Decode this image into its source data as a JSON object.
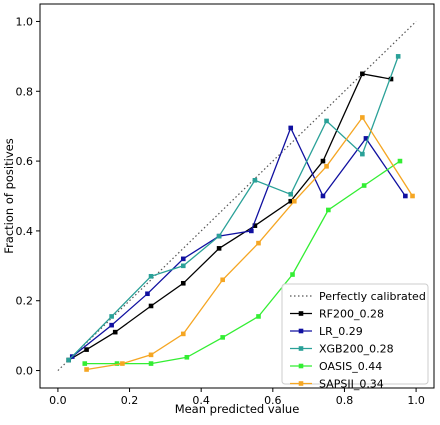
{
  "chart_data": {
    "type": "line",
    "title": "",
    "xlabel": "Mean predicted value",
    "ylabel": "Fraction of positives",
    "xlim": [
      -0.05,
      1.05
    ],
    "ylim": [
      -0.05,
      1.05
    ],
    "x_ticks": [
      "0.0",
      "0.2",
      "0.4",
      "0.6",
      "0.8",
      "1.0"
    ],
    "y_ticks": [
      "0.0",
      "0.2",
      "0.4",
      "0.6",
      "0.8",
      "1.0"
    ],
    "grid": false,
    "legend_position": "lower-right",
    "reference_line": {
      "name": "Perfectly calibrated",
      "x": [
        0,
        1
      ],
      "y": [
        0,
        1
      ],
      "style": "dotted",
      "color": "#555555"
    },
    "series": [
      {
        "name": "RF200_0.28",
        "color": "#000000",
        "x": [
          0.03,
          0.08,
          0.16,
          0.26,
          0.35,
          0.45,
          0.55,
          0.65,
          0.74,
          0.85,
          0.93
        ],
        "y": [
          0.03,
          0.06,
          0.11,
          0.185,
          0.25,
          0.35,
          0.415,
          0.485,
          0.6,
          0.85,
          0.835
        ]
      },
      {
        "name": "LR_0.29",
        "color": "#1010a0",
        "x": [
          0.04,
          0.15,
          0.25,
          0.35,
          0.45,
          0.54,
          0.65,
          0.74,
          0.86,
          0.97
        ],
        "y": [
          0.04,
          0.13,
          0.22,
          0.32,
          0.385,
          0.4,
          0.695,
          0.5,
          0.665,
          0.5
        ]
      },
      {
        "name": "XGB200_0.28",
        "color": "#2aa198",
        "x": [
          0.03,
          0.15,
          0.26,
          0.35,
          0.45,
          0.55,
          0.65,
          0.75,
          0.85,
          0.95
        ],
        "y": [
          0.03,
          0.155,
          0.27,
          0.3,
          0.385,
          0.545,
          0.505,
          0.715,
          0.62,
          0.9
        ]
      },
      {
        "name": "OASIS_0.44",
        "color": "#33ee33",
        "x": [
          0.075,
          0.165,
          0.26,
          0.36,
          0.46,
          0.56,
          0.655,
          0.755,
          0.855,
          0.955
        ],
        "y": [
          0.02,
          0.02,
          0.02,
          0.038,
          0.095,
          0.155,
          0.275,
          0.46,
          0.53,
          0.6
        ]
      },
      {
        "name": "SAPSII_0.34",
        "color": "#f5a623",
        "x": [
          0.08,
          0.18,
          0.26,
          0.35,
          0.46,
          0.56,
          0.66,
          0.75,
          0.85,
          0.99
        ],
        "y": [
          0.003,
          0.02,
          0.045,
          0.105,
          0.26,
          0.365,
          0.485,
          0.585,
          0.725,
          0.5
        ]
      }
    ]
  }
}
